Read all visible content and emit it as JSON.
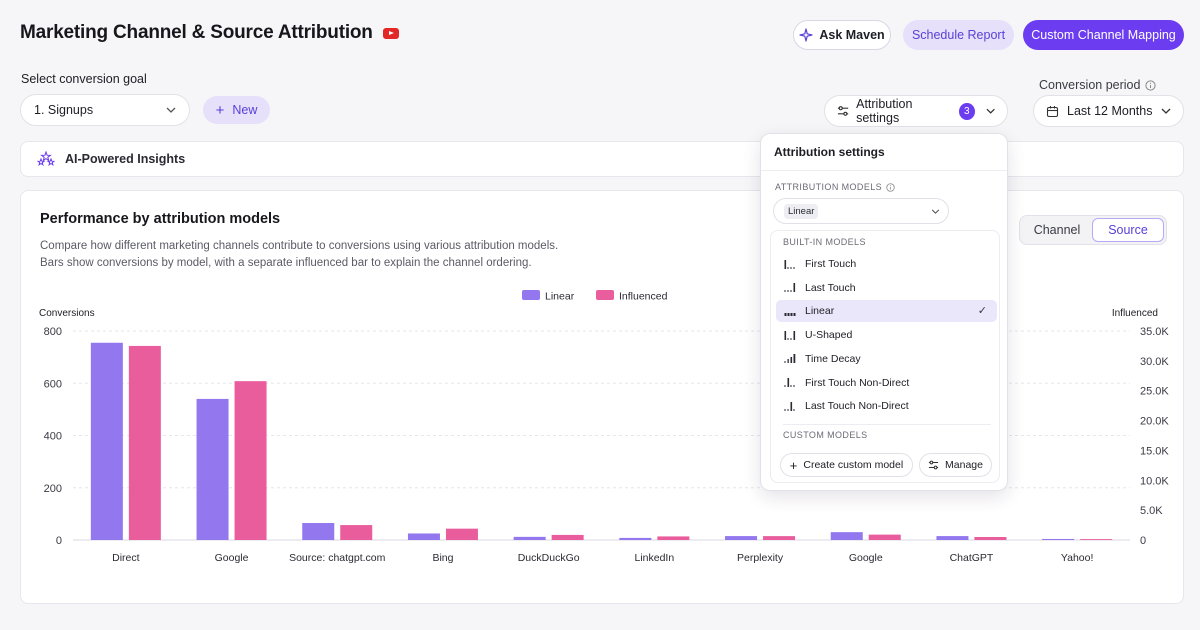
{
  "header": {
    "title": "Marketing Channel & Source Attribution",
    "ask_label": "Ask Maven",
    "schedule_label": "Schedule Report",
    "custom_label": "Custom Channel Mapping"
  },
  "goal": {
    "label": "Select conversion goal",
    "value": "1. Signups",
    "new_label": "New"
  },
  "attribution_button": {
    "label": "Attribution settings",
    "count": "3"
  },
  "period": {
    "label": "Conversion period",
    "value": "Last 12 Months"
  },
  "insights": {
    "label": "AI-Powered Insights"
  },
  "card": {
    "title": "Performance by attribution models",
    "desc1": "Compare how different marketing channels contribute to conversions using various attribution models.",
    "desc2": "Bars show conversions by model, with a separate influenced bar to explain the channel ordering.",
    "toggle": [
      "Channel",
      "Source"
    ],
    "toggle_active": 1
  },
  "dropdown": {
    "title": "Attribution settings",
    "models_label": "ATTRIBUTION MODELS",
    "selected_model": "Linear",
    "builtin_label": "BUILT-IN MODELS",
    "custom_label": "CUSTOM MODELS",
    "items": [
      "First Touch",
      "Last Touch",
      "Linear",
      "U-Shaped",
      "Time Decay",
      "First Touch Non-Direct",
      "Last Touch Non-Direct"
    ],
    "selected_index": 2,
    "create_label": "Create custom model",
    "manage_label": "Manage"
  },
  "colors": {
    "linear": "#9277ef",
    "influenced": "#ea5d9d",
    "accent": "#6b3cf0"
  },
  "chart_data": {
    "type": "bar",
    "categories": [
      "Direct",
      "Google",
      "Source: chatgpt.com",
      "Bing",
      "DuckDuckGo",
      "LinkedIn",
      "Perplexity",
      "Google",
      "ChatGPT",
      "Yahoo!"
    ],
    "series": [
      {
        "name": "Linear",
        "axis": "left",
        "values": [
          755,
          540,
          65,
          25,
          12,
          8,
          15,
          30,
          15,
          4
        ]
      },
      {
        "name": "Influenced",
        "axis": "right",
        "values": [
          32500,
          26600,
          2500,
          1900,
          850,
          600,
          650,
          900,
          500,
          150
        ]
      }
    ],
    "ylabel": "Conversions",
    "y2label": "Influenced",
    "ylim": [
      0,
      800
    ],
    "y2lim": [
      0,
      35000
    ],
    "yticks": [
      "800",
      "600",
      "400",
      "200",
      "0"
    ],
    "y2ticks": [
      "35.0K",
      "30.0K",
      "25.0K",
      "20.0K",
      "15.0K",
      "10.0K",
      "5.0K",
      "0"
    ],
    "legend": [
      "Linear",
      "Influenced"
    ],
    "legend_position": "top-center",
    "grid": true
  }
}
